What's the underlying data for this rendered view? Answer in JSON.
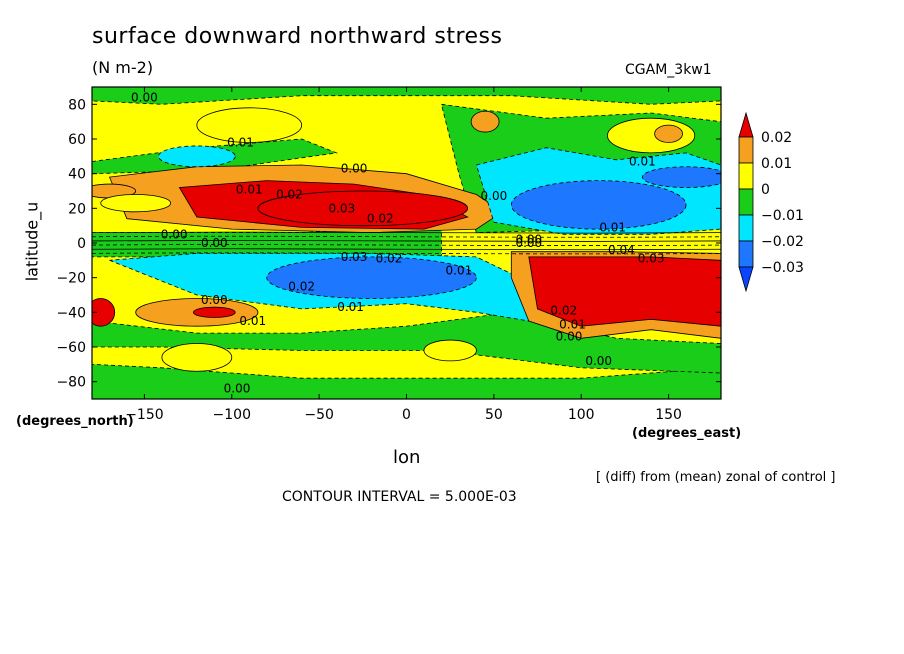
{
  "chart_data": {
    "type": "heatmap",
    "title": "surface downward northward stress",
    "units": "(N m-2)",
    "model_tag": "CGAM_3kw1",
    "xlabel": "lon",
    "ylabel": "latitude_u",
    "x_unit": "(degrees_east)",
    "y_unit": "(degrees_north)",
    "xlim": [
      -180,
      180
    ],
    "ylim": [
      -90,
      90
    ],
    "x_ticks": [
      -150,
      -100,
      -50,
      0,
      50,
      100,
      150
    ],
    "x_tick_labels": [
      "−150",
      "−100",
      "−50",
      "0",
      "50",
      "100",
      "150"
    ],
    "y_ticks": [
      80,
      60,
      40,
      20,
      0,
      -20,
      -40,
      -60,
      -80
    ],
    "y_tick_labels": [
      "80",
      "60",
      "40",
      "20",
      "0",
      "−20",
      "−40",
      "−60",
      "−80"
    ],
    "colorbar": {
      "labels": [
        "0.02",
        "0.01",
        "0",
        "−0.01",
        "−0.02",
        "−0.03"
      ],
      "levels": [
        0.02,
        0.01,
        0,
        -0.01,
        -0.02,
        -0.03
      ],
      "colors": [
        "#e60000",
        "#f5a01e",
        "#ffff00",
        "#19cd19",
        "#00e6ff",
        "#1e78ff",
        "#0a46ff"
      ]
    },
    "note": "[ (diff) from (mean) zonal of control ]",
    "contour_interval": "CONTOUR INTERVAL = 5.000E-03",
    "regions": [
      {
        "name": "background",
        "level": 0.0
      },
      {
        "name": "NH subtropical positive",
        "lon": [
          -160,
          50
        ],
        "lat": [
          10,
          40
        ],
        "level": 0.02
      },
      {
        "name": "SH subtropical positive",
        "lon": [
          60,
          180
        ],
        "lat": [
          -50,
          -8
        ],
        "level": 0.02
      },
      {
        "name": "SH negative band",
        "lon": [
          -160,
          60
        ],
        "lat": [
          -35,
          -8
        ],
        "level": -0.02
      },
      {
        "name": "NH negative band",
        "lon": [
          40,
          180
        ],
        "lat": [
          10,
          45
        ],
        "level": -0.02
      }
    ],
    "contour_labels": [
      {
        "text": "0.00",
        "lon": -150,
        "lat": 84
      },
      {
        "text": "0.01",
        "lon": -95,
        "lat": 58
      },
      {
        "text": "0.00",
        "lon": -30,
        "lat": 43
      },
      {
        "text": "0.01",
        "lon": -90,
        "lat": 31
      },
      {
        "text": "0.02",
        "lon": -67,
        "lat": 28
      },
      {
        "text": "0.03",
        "lon": -37,
        "lat": 20
      },
      {
        "text": "0.02",
        "lon": -15,
        "lat": 14
      },
      {
        "text": "0.00",
        "lon": -133,
        "lat": 5
      },
      {
        "text": "0.00",
        "lon": -110,
        "lat": 0
      },
      {
        "text": "0.00",
        "lon": 50,
        "lat": 27
      },
      {
        "text": "0.01",
        "lon": 135,
        "lat": 47
      },
      {
        "text": "0.01",
        "lon": 118,
        "lat": 9
      },
      {
        "text": "0.00",
        "lon": 70,
        "lat": 2
      },
      {
        "text": "0.00",
        "lon": 70,
        "lat": 0
      },
      {
        "text": "0.04",
        "lon": 123,
        "lat": -4
      },
      {
        "text": "0.03",
        "lon": 140,
        "lat": -9
      },
      {
        "text": "0.03",
        "lon": -30,
        "lat": -8
      },
      {
        "text": "0.02",
        "lon": -10,
        "lat": -9
      },
      {
        "text": "0.01",
        "lon": 30,
        "lat": -16
      },
      {
        "text": "0.02",
        "lon": -60,
        "lat": -25
      },
      {
        "text": "0.01",
        "lon": -32,
        "lat": -37
      },
      {
        "text": "0.00",
        "lon": -110,
        "lat": -33
      },
      {
        "text": "0.01",
        "lon": -88,
        "lat": -45
      },
      {
        "text": "0.02",
        "lon": 90,
        "lat": -39
      },
      {
        "text": "0.01",
        "lon": 95,
        "lat": -47
      },
      {
        "text": "0.00",
        "lon": 93,
        "lat": -54
      },
      {
        "text": "0.00",
        "lon": 110,
        "lat": -68
      },
      {
        "text": "0.00",
        "lon": -97,
        "lat": -84
      }
    ]
  }
}
